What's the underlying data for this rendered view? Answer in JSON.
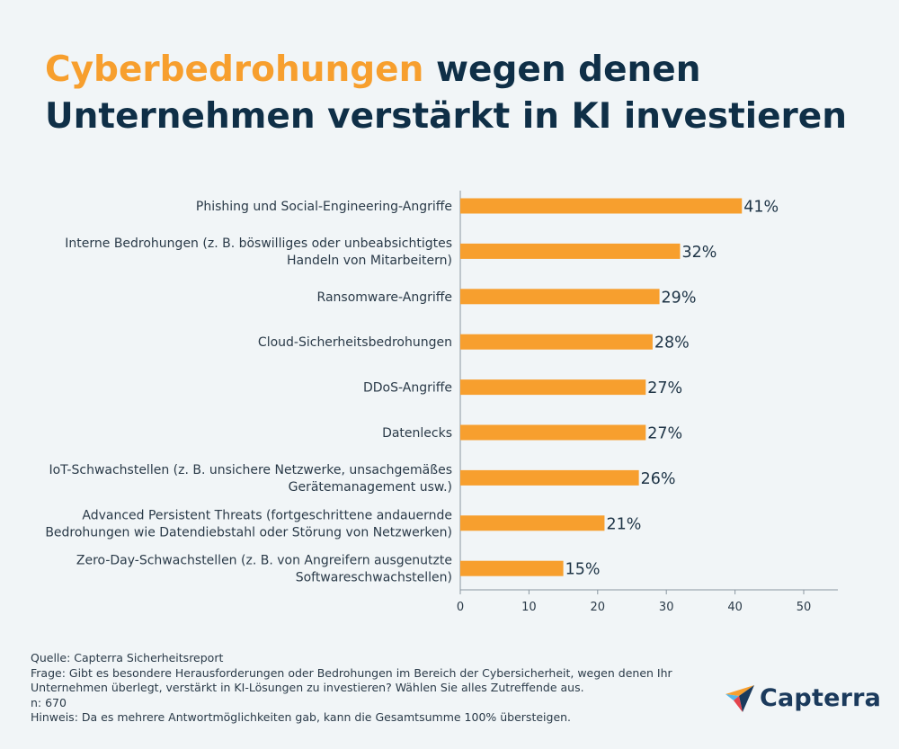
{
  "title": {
    "highlight": "Cyberbedrohungen",
    "line1_rest": " wegen denen",
    "line2": "Unternehmen verstärkt in KI investieren"
  },
  "colors": {
    "bar": "#f79f2e",
    "title": "#0f2f47",
    "highlight": "#f79f2e",
    "background": "#f1f5f7"
  },
  "chart_data": {
    "type": "bar",
    "orientation": "horizontal",
    "categories": [
      [
        "Phishing und Social-Engineering-Angriffe"
      ],
      [
        "Interne Bedrohungen (z. B. böswilliges oder unbeabsichtigtes",
        "Handeln von Mitarbeitern)"
      ],
      [
        "Ransomware-Angriffe"
      ],
      [
        "Cloud-Sicherheitsbedrohungen"
      ],
      [
        "DDoS-Angriffe"
      ],
      [
        "Datenlecks"
      ],
      [
        "IoT-Schwachstellen (z. B. unsichere Netzwerke, unsachgemäßes",
        "Gerätemanagement usw.)"
      ],
      [
        "Advanced Persistent Threats (fortgeschrittene andauernde",
        "Bedrohungen wie Datendiebstahl oder Störung  von Netzwerken)"
      ],
      [
        "Zero-Day-Schwachstellen (z. B. von Angreifern ausgenutzte",
        "Softwareschwachstellen)"
      ]
    ],
    "values": [
      41,
      32,
      29,
      28,
      27,
      27,
      26,
      21,
      15
    ],
    "value_labels": [
      "41%",
      "32%",
      "29%",
      "28%",
      "27%",
      "27%",
      "26%",
      "21%",
      "15%"
    ],
    "xlim": [
      0,
      55
    ],
    "xticks": [
      0,
      10,
      20,
      30,
      40,
      50
    ],
    "grid": false
  },
  "footer": {
    "source": "Quelle: Capterra Sicherheitsreport",
    "question_line1": "Frage: Gibt es besondere Herausforderungen oder Bedrohungen im Bereich der Cybersicherheit, wegen denen Ihr",
    "question_line2": "Unternehmen überlegt, verstärkt in KI-Lösungen zu investieren? Wählen Sie alles Zutreffende aus.",
    "n": "n: 670",
    "note": "Hinweis: Da es mehrere Antwortmöglichkeiten gab, kann die Gesamtsumme 100% übersteigen."
  },
  "logo": {
    "text": "Capterra",
    "icon": "capterra-arrow-icon"
  }
}
